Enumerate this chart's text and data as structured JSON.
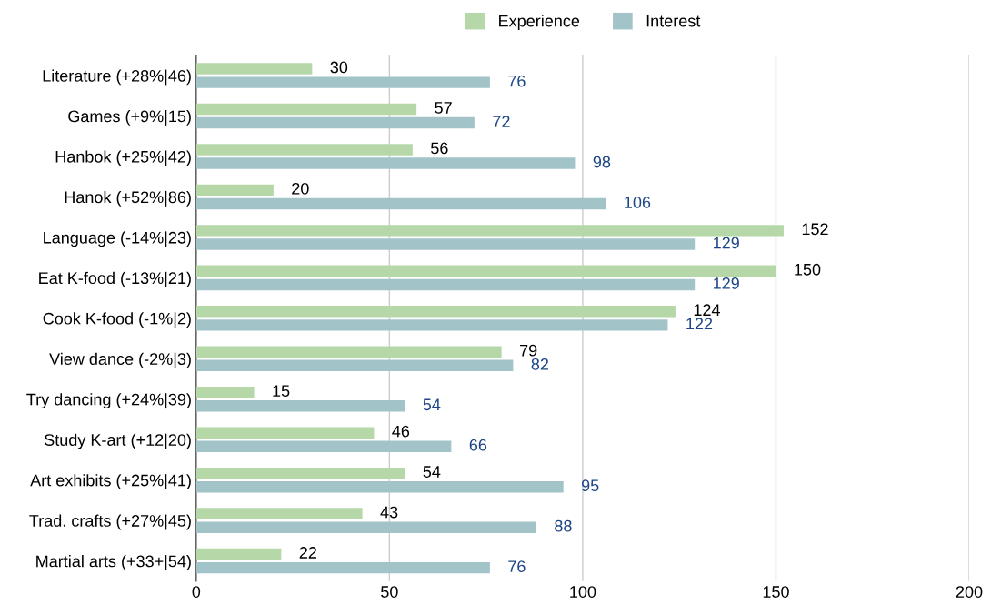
{
  "chart_data": {
    "type": "bar",
    "orientation": "horizontal",
    "categories": [
      "Literature (+28%|46)",
      "Games (+9%|15)",
      "Hanbok (+25%|42)",
      "Hanok (+52%|86)",
      "Language (-14%|23)",
      "Eat K-food (-13%|21)",
      "Cook K-food (-1%|2)",
      "View dance (-2%|3)",
      "Try dancing (+24%|39)",
      "Study K-art (+12|20)",
      "Art exhibits (+25%|41)",
      "Trad. crafts (+27%|45)",
      "Martial arts (+33+|54)"
    ],
    "series": [
      {
        "name": "Experience",
        "color": "#b6d7a8",
        "values": [
          30,
          57,
          56,
          20,
          152,
          150,
          124,
          79,
          15,
          46,
          54,
          43,
          22
        ]
      },
      {
        "name": "Interest",
        "color": "#a2c4c9",
        "values": [
          76,
          72,
          98,
          106,
          129,
          129,
          122,
          82,
          54,
          66,
          95,
          88,
          76
        ]
      }
    ],
    "xlim": [
      0,
      200
    ],
    "xticks": [
      0,
      50,
      100,
      150,
      200
    ],
    "grid": "x",
    "legend": "top",
    "data_labels": true
  }
}
